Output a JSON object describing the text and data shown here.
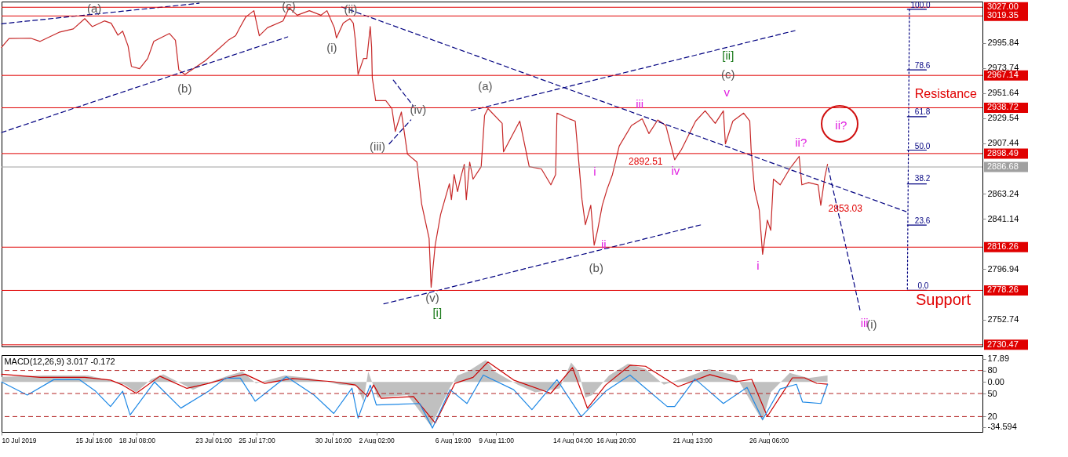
{
  "chart_data": [
    {
      "type": "line",
      "xlim": [
        "2019-07-10",
        "2019-09-08T10:00"
      ],
      "ylim": [
        2729,
        3032
      ],
      "yticks": [
        2995.84,
        2973.74,
        2951.64,
        2929.54,
        2907.44,
        2863.24,
        2841.14,
        2796.94,
        2752.74
      ],
      "tick_labels": "y",
      "series": [
        {
          "color": "#c62828",
          "x": [
            "2019-07-10T00:00",
            "2019-07-10T11:00",
            "2019-07-11T19:00",
            "2019-07-12T09:00",
            "2019-07-13T13:00",
            "2019-07-14T10:00",
            "2019-07-15T03:00",
            "2019-07-15T14:00",
            "2019-07-16T08:00",
            "2019-07-16T18:00",
            "2019-07-17T04:00",
            "2019-07-17T11:00",
            "2019-07-17T19:00",
            "2019-07-18T00:00",
            "2019-07-18T12:00",
            "2019-07-19T00:00",
            "2019-07-19T09:00",
            "2019-07-20T08:00",
            "2019-07-20T17:00",
            "2019-07-20T22:00",
            "2019-07-21T07:00",
            "2019-07-22T13:00",
            "2019-07-23T09:00",
            "2019-07-24T00:00",
            "2019-07-24T10:00",
            "2019-07-24T17:00",
            "2019-07-25T01:00",
            "2019-07-25T13:00",
            "2019-07-25T21:00",
            "2019-07-26T09:00",
            "2019-07-27T08:00",
            "2019-07-27T17:00",
            "2019-07-28T05:00",
            "2019-07-28T23:00",
            "2019-07-29T16:00",
            "2019-07-30T01:00",
            "2019-07-30T12:00",
            "2019-07-30T15:00",
            "2019-07-31T01:00",
            "2019-07-31T11:00",
            "2019-07-31T16:00",
            "2019-07-31T19:00",
            "2019-07-31T23:00",
            "2019-08-01T07:00",
            "2019-08-01T12:00",
            "2019-08-01T17:00",
            "2019-08-01T19:00",
            "2019-08-01T20:00",
            "2019-08-02T01:00",
            "2019-08-02T16:00",
            "2019-08-03T01:00",
            "2019-08-03T06:00",
            "2019-08-03T15:00",
            "2019-08-04T00:00",
            "2019-08-04T14:00",
            "2019-08-04T21:00",
            "2019-08-05T08:00",
            "2019-08-05T11:00",
            "2019-08-05T17:00",
            "2019-08-06T01:00",
            "2019-08-06T14:00",
            "2019-08-06T17:00",
            "2019-08-06T21:00",
            "2019-08-07T02:00",
            "2019-08-07T07:00",
            "2019-08-07T12:00",
            "2019-08-07T15:00",
            "2019-08-07T20:00",
            "2019-08-08T01:00",
            "2019-08-08T13:00",
            "2019-08-08T18:00",
            "2019-08-08T23:00",
            "2019-08-09T20:00",
            "2019-08-09T22:00",
            "2019-08-10T22:00",
            "2019-08-11T12:00",
            "2019-08-12T06:00",
            "2019-08-12T20:00",
            "2019-08-13T03:00",
            "2019-08-13T05:00",
            "2019-08-13T23:00",
            "2019-08-14T08:00",
            "2019-08-14T13:00",
            "2019-08-14T18:00",
            "2019-08-14T23:00",
            "2019-08-15T07:00",
            "2019-08-15T12:00",
            "2019-08-15T17:00",
            "2019-08-16T00:00",
            "2019-08-16T07:00",
            "2019-08-16T15:00",
            "2019-08-17T01:00",
            "2019-08-17T19:00",
            "2019-08-18T11:00",
            "2019-08-18T21:00",
            "2019-08-19T10:00",
            "2019-08-19T22:00",
            "2019-08-20T11:00",
            "2019-08-20T21:00",
            "2019-08-21T18:00",
            "2019-08-22T08:00",
            "2019-08-22T23:00",
            "2019-08-23T11:00",
            "2019-08-23T14:00",
            "2019-08-24T01:00",
            "2019-08-24T17:00",
            "2019-08-25T02:00",
            "2019-08-25T04:00",
            "2019-08-25T09:00",
            "2019-08-25T16:00",
            "2019-08-25T21:00",
            "2019-08-26T04:00",
            "2019-08-26T09:00",
            "2019-08-26T13:00",
            "2019-08-26T23:00",
            "2019-08-27T13:00",
            "2019-08-28T03:00",
            "2019-08-28T07:00",
            "2019-08-28T17:00",
            "2019-08-29T07:00",
            "2019-08-29T11:00",
            "2019-08-29T17:00",
            "2019-08-29T21:00"
          ],
          "values": [
            2991.8,
            2999.5,
            2999.8,
            2997,
            3005,
            3008,
            3017,
            3010,
            3015,
            3013,
            3002.5,
            3006,
            2993,
            2975,
            2973,
            2982,
            2997,
            3004,
            2998,
            2972,
            2968,
            2980,
            2990.5,
            2998.5,
            3002,
            3010,
            3018.5,
            3024,
            3002,
            3009,
            3015,
            3026.5,
            3020,
            3024,
            3020,
            3024,
            3009,
            3000,
            3013,
            3017,
            3013,
            2998,
            2968,
            2982,
            2982,
            3010,
            2992,
            2965,
            2945,
            2945,
            2938,
            2918,
            2935,
            2898,
            2891,
            2854,
            2824,
            2781,
            2818,
            2845,
            2872,
            2858,
            2880,
            2865,
            2878,
            2889,
            2858,
            2891,
            2876,
            2887,
            2932,
            2938,
            2925,
            2900,
            2927,
            2887,
            2885,
            2871,
            2880,
            2934,
            2929,
            2927,
            2893,
            2858,
            2836,
            2853,
            2818,
            2831,
            2853,
            2867,
            2880,
            2905,
            2923,
            2929,
            2916,
            2928,
            2923,
            2893,
            2902,
            2927,
            2936,
            2925,
            2936,
            2907,
            2927,
            2934,
            2927,
            2902,
            2867,
            2849,
            2810,
            2840,
            2831,
            2876,
            2871,
            2885,
            2896,
            2871,
            2873,
            2871,
            2853,
            2878,
            2889
          ]
        },
        {
          "color": "#000080",
          "line_style": "dashed",
          "x": [
            "2019-07-10T00:00",
            "2019-07-22T04:00"
          ],
          "values": [
            3012.5,
            3030.5
          ]
        },
        {
          "color": "#000080",
          "line_style": "dashed",
          "x": [
            "2019-07-10T00:00",
            "2019-07-27T15:00"
          ],
          "values": [
            2917,
            3001
          ]
        },
        {
          "color": "#000080",
          "line_style": "dashed",
          "x": [
            "2019-07-30T23:00",
            "2019-09-03T17:00"
          ],
          "values": [
            3027.2,
            2847.5
          ]
        },
        {
          "color": "#000080",
          "line_style": "dashed",
          "x": [
            "2019-08-02T13:00",
            "2019-08-22T03:00"
          ],
          "values": [
            2766.4,
            2836
          ]
        },
        {
          "color": "#000080",
          "line_style": "dashed",
          "x": [
            "2019-08-07T22:00",
            "2019-08-27T21:00"
          ],
          "values": [
            2936.3,
            3006.5
          ]
        },
        {
          "color": "#000080",
          "line_style": "dashed",
          "x": [
            "2019-08-03T03:00",
            "2019-08-04T09:00"
          ],
          "values": [
            2963,
            2940
          ]
        },
        {
          "color": "#000080",
          "line_style": "dashed",
          "x": [
            "2019-08-02T21:00",
            "2019-08-04T05:00"
          ],
          "values": [
            2907,
            2928
          ]
        },
        {
          "color": "#000080",
          "line_style": "dashed",
          "x": [
            "2019-08-29T22:00",
            "2019-08-31T21:00"
          ],
          "values": [
            2886,
            2761
          ]
        },
        {
          "color": "#000080",
          "line_style": "dotted",
          "x": [
            "2019-09-03T22:00",
            "2019-09-03T19:00"
          ],
          "values": [
            3025.2,
            2778.3
          ]
        },
        {
          "color": "#000080",
          "x": [
            "2019-09-03T19:00",
            "2019-09-04T23:00"
          ],
          "values": [
            3025.2,
            3025.2
          ]
        },
        {
          "color": "#000080",
          "x": [
            "2019-09-03T19:00",
            "2019-09-04T23:00"
          ],
          "values": [
            2972,
            2972
          ]
        },
        {
          "color": "#000080",
          "x": [
            "2019-09-03T19:00",
            "2019-09-04T23:00"
          ],
          "values": [
            2930.9,
            2930.9
          ]
        },
        {
          "color": "#000080",
          "x": [
            "2019-09-03T19:00",
            "2019-09-04T23:00"
          ],
          "values": [
            2901.5,
            2901.5
          ]
        },
        {
          "color": "#000080",
          "x": [
            "2019-09-03T19:00",
            "2019-09-04T23:00"
          ],
          "values": [
            2871.8,
            2871.8
          ]
        },
        {
          "color": "#000080",
          "x": [
            "2019-09-03T19:00",
            "2019-09-04T23:00"
          ],
          "values": [
            2835.7,
            2835.7
          ]
        },
        {
          "color": "#000080",
          "x": [
            "2019-09-03T19:00",
            "2019-09-04T23:00"
          ],
          "values": [
            2778.3,
            2778.3
          ]
        }
      ],
      "ref_lines": [
        {
          "axis": "y",
          "value": 3027.0,
          "label": "3027.00",
          "color": "#e00000"
        },
        {
          "axis": "y",
          "value": 3019.35,
          "label": "3019.35",
          "color": "#e00000"
        },
        {
          "axis": "y",
          "value": 2967.14,
          "label": "2967.14",
          "color": "#e00000"
        },
        {
          "axis": "y",
          "value": 2938.72,
          "label": "2938.72",
          "color": "#e00000"
        },
        {
          "axis": "y",
          "value": 2898.49,
          "label": "2898.49",
          "color": "#e00000"
        },
        {
          "axis": "y",
          "value": 2886.68,
          "label": "2886.68",
          "color": "#a0a0a0"
        },
        {
          "axis": "y",
          "value": 2816.26,
          "label": "2816.26",
          "color": "#e00000"
        },
        {
          "axis": "y",
          "value": 2778.26,
          "label": "2778.26",
          "color": "#e00000"
        },
        {
          "axis": "y",
          "value": 2730.47,
          "label": "2730.47",
          "color": "#e00000"
        }
      ],
      "annotations": [
        "(a)",
        "(b)",
        "(c)",
        "(ii)",
        "(i)",
        "(iv)",
        "(iii)",
        "(v)",
        "[i]",
        "(a)",
        "(b)",
        "iii",
        "[ii]",
        "(c)",
        "v",
        "i",
        "ii",
        "iv",
        "2892.51",
        "i",
        "ii?",
        "ii?",
        "2853.03",
        "iii",
        "(i)",
        "100.0",
        "78.6",
        "61.8",
        "50.0",
        "38.2",
        "23.6",
        "0.0",
        "Resistance",
        "Support"
      ]
    },
    {
      "type": "line",
      "title": "MACD(12,26,9) 3.017 -0.172",
      "xlim": [
        "2019-07-10",
        "2019-09-08T10:00"
      ],
      "ylim": [
        -38.4,
        20.7
      ],
      "y2lim": [
        0,
        100
      ],
      "xticks": [
        {
          "value": "2019-07-10",
          "label": "10 Jul 2019"
        },
        {
          "value": "2019-07-15T16:00",
          "label": "15 Jul 16:00"
        },
        {
          "value": "2019-07-18T08:00",
          "label": "18 Jul 08:00"
        },
        {
          "value": "2019-07-23T01:00",
          "label": "23 Jul 01:00"
        },
        {
          "value": "2019-07-25T17:00",
          "label": "25 Jul 17:00"
        },
        {
          "value": "2019-07-30T10:00",
          "label": "30 Jul 10:00"
        },
        {
          "value": "2019-08-02T02:00",
          "label": "2 Aug 02:00"
        },
        {
          "value": "2019-08-06T19:00",
          "label": "6 Aug 19:00"
        },
        {
          "value": "2019-08-09T11:00",
          "label": "9 Aug 11:00"
        },
        {
          "value": "2019-08-14T04:00",
          "label": "14 Aug 04:00"
        },
        {
          "value": "2019-08-16T20:00",
          "label": "16 Aug 20:00"
        },
        {
          "value": "2019-08-21T13:00",
          "label": "21 Aug 13:00"
        },
        {
          "value": "2019-08-26T06:00",
          "label": "26 Aug 06:00"
        }
      ],
      "yticks": [
        17.89,
        {
          "value": 0,
          "label": "0.00"
        },
        -34.594
      ],
      "y2ticks": [
        80,
        50,
        20
      ],
      "series": [
        {
          "type": "area",
          "color": "#c0c0c0",
          "x": [
            "2019-07-10T00:00",
            "2019-07-12T16:00",
            "2019-07-15T08:00",
            "2019-07-16T18:00",
            "2019-07-17T14:00",
            "2019-07-18T07:00",
            "2019-07-19T05:00",
            "2019-07-19T23:00",
            "2019-07-21T01:00",
            "2019-07-21T19:00",
            "2019-07-22T21:00",
            "2019-07-24T00:00",
            "2019-07-24T20:00",
            "2019-07-25T16:00",
            "2019-07-27T11:00",
            "2019-07-28T23:00",
            "2019-07-30T20:00",
            "2019-07-31T21:00",
            "2019-08-01T07:00",
            "2019-08-01T14:00",
            "2019-08-02T04:00",
            "2019-08-04T00:00",
            "2019-08-05T11:00",
            "2019-08-06T14:00",
            "2019-08-07T02:00",
            "2019-08-07T17:00",
            "2019-08-08T20:00",
            "2019-08-09T09:00",
            "2019-08-10T19:00",
            "2019-08-11T21:00",
            "2019-08-13T09:00",
            "2019-08-14T02:00",
            "2019-08-14T13:00",
            "2019-08-14T23:00",
            "2019-08-15T09:00",
            "2019-08-16T10:00",
            "2019-08-17T14:00",
            "2019-08-18T16:00",
            "2019-08-19T19:00",
            "2019-08-21T06:00",
            "2019-08-22T14:00",
            "2019-08-24T05:00",
            "2019-08-25T07:00",
            "2019-08-25T21:00",
            "2019-08-26T09:00",
            "2019-08-27T13:00",
            "2019-08-28T17:00",
            "2019-08-29T21:00"
          ],
          "values": [
            4,
            5,
            5,
            1,
            -2,
            -8,
            2,
            6,
            -1,
            -6,
            0,
            5,
            8,
            -1,
            5,
            3,
            -2,
            -3,
            -15,
            8,
            -12,
            -10,
            -34,
            -5,
            5,
            8,
            17,
            8,
            -2,
            -8,
            -5,
            15,
            8,
            -12,
            -10,
            5,
            14,
            10,
            -2,
            4,
            10,
            5,
            -18,
            -30,
            -8,
            7,
            3,
            5
          ]
        },
        {
          "color": "#cc0000",
          "x": [
            "2019-07-10T00:00",
            "2019-07-12T09:00",
            "2019-07-15T03:00",
            "2019-07-16T17:00",
            "2019-07-17T11:00",
            "2019-07-18T07:00",
            "2019-07-19T18:00",
            "2019-07-21T10:00",
            "2019-07-22T18:00",
            "2019-07-23T23:00",
            "2019-07-25T00:00",
            "2019-07-26T05:00",
            "2019-07-27T22:00",
            "2019-07-30T11:00",
            "2019-07-31T19:00",
            "2019-08-01T13:00",
            "2019-08-01T22:00",
            "2019-08-02T09:00",
            "2019-08-04T09:00",
            "2019-08-05T17:00",
            "2019-08-06T22:00",
            "2019-08-08T01:00",
            "2019-08-08T23:00",
            "2019-08-10T13:00",
            "2019-08-12T20:00",
            "2019-08-14T04:00",
            "2019-08-15T02:00",
            "2019-08-16T05:00",
            "2019-08-17T17:00",
            "2019-08-18T16:00",
            "2019-08-20T16:00",
            "2019-08-22T15:00",
            "2019-08-24T06:00",
            "2019-08-25T05:00",
            "2019-08-26T04:00",
            "2019-08-27T17:00",
            "2019-08-28T11:00",
            "2019-08-29T05:00",
            "2019-08-29T21:00"
          ],
          "values": [
            6,
            3.6,
            3.6,
            1.5,
            -2.3,
            -8.7,
            4.5,
            -4.9,
            -1.1,
            3.2,
            6,
            -1.1,
            2.7,
            0.2,
            -2.3,
            -11.2,
            -2.3,
            -12.5,
            -11.2,
            -31.6,
            -1.1,
            3.6,
            15.4,
            1.5,
            -8.7,
            11.1,
            -20.2,
            -2.3,
            12.9,
            12.1,
            -3.6,
            5.7,
            0.3,
            2,
            -26.5,
            3.2,
            3.2,
            -1,
            -1.7
          ]
        },
        {
          "color": "#1e88e5",
          "axis": "y2",
          "x": [
            "2019-07-10T00:00",
            "2019-07-11T14:00",
            "2019-07-13T05:00",
            "2019-07-14T19:00",
            "2019-07-15T19:00",
            "2019-07-16T17:00",
            "2019-07-17T11:00",
            "2019-07-17T22:00",
            "2019-07-19T10:00",
            "2019-07-21T01:00",
            "2019-07-22T18:00",
            "2019-07-23T19:00",
            "2019-07-24T17:00",
            "2019-07-25T15:00",
            "2019-07-27T13:00",
            "2019-07-29T06:00",
            "2019-07-30T11:00",
            "2019-07-31T14:00",
            "2019-07-31T23:00",
            "2019-08-01T17:00",
            "2019-08-02T02:00",
            "2019-08-04T18:00",
            "2019-08-05T13:00",
            "2019-08-06T15:00",
            "2019-08-07T16:00",
            "2019-08-08T16:00",
            "2019-08-10T13:00",
            "2019-08-11T16:00",
            "2019-08-13T05:00",
            "2019-08-14T17:00",
            "2019-08-16T05:00",
            "2019-08-17T17:00",
            "2019-08-20T00:00",
            "2019-08-20T11:00",
            "2019-08-21T17:00",
            "2019-08-23T11:00",
            "2019-08-24T22:00",
            "2019-08-25T21:00",
            "2019-08-26T23:00",
            "2019-08-27T23:00",
            "2019-08-28T08:00",
            "2019-08-29T11:00",
            "2019-08-29T21:00"
          ],
          "values": [
            65,
            48,
            68,
            68,
            53,
            33,
            53,
            22,
            65,
            31,
            53,
            70,
            70,
            40,
            72,
            48,
            24,
            57,
            18,
            61,
            35,
            37,
            5,
            55,
            37,
            74,
            55,
            29,
            68,
            20,
            53,
            74,
            33,
            33,
            69,
            37,
            58,
            16,
            56,
            62,
            39,
            37,
            62
          ]
        }
      ],
      "ref_lines": [
        {
          "axis": "y2",
          "value": 80,
          "color": "#b22222",
          "line_style": "dashed"
        },
        {
          "axis": "y2",
          "value": 50,
          "color": "#b22222",
          "line_style": "dashed"
        },
        {
          "axis": "y2",
          "value": 20,
          "color": "#b22222",
          "line_style": "dashed"
        }
      ]
    }
  ]
}
